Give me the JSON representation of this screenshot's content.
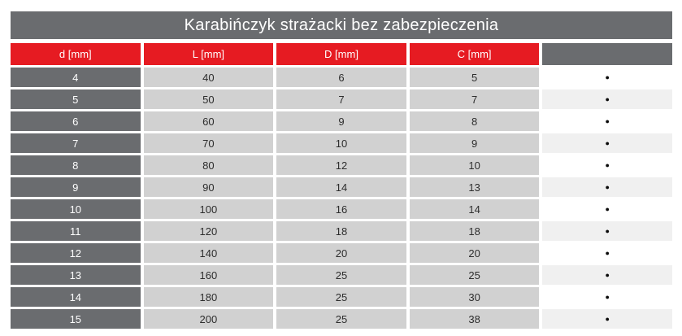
{
  "chart_data": {
    "type": "table",
    "title": "Karabińczyk strażacki bez zabezpieczenia",
    "columns": [
      "d [mm]",
      "L [mm]",
      "D [mm]",
      "C [mm]",
      ""
    ],
    "rows": [
      [
        "4",
        "40",
        "6",
        "5"
      ],
      [
        "5",
        "50",
        "7",
        "7"
      ],
      [
        "6",
        "60",
        "9",
        "8"
      ],
      [
        "7",
        "70",
        "10",
        "9"
      ],
      [
        "8",
        "80",
        "12",
        "10"
      ],
      [
        "9",
        "90",
        "14",
        "13"
      ],
      [
        "10",
        "100",
        "16",
        "14"
      ],
      [
        "11",
        "120",
        "18",
        "18"
      ],
      [
        "12",
        "140",
        "20",
        "20"
      ],
      [
        "13",
        "160",
        "25",
        "25"
      ],
      [
        "14",
        "180",
        "25",
        "30"
      ],
      [
        "15",
        "200",
        "25",
        "38"
      ]
    ],
    "last_column_marker_per_row": true
  },
  "icons": {
    "bullet": "●"
  },
  "colors": {
    "header_red": "#e61b22",
    "dark_gray": "#6a6c6f",
    "cell_gray": "#d1d1d1",
    "bullet_row_white": "#ffffff",
    "bullet_row_alt": "#f0f0f0",
    "title_text": "#ffffff",
    "value_text": "#2d2d2d"
  }
}
